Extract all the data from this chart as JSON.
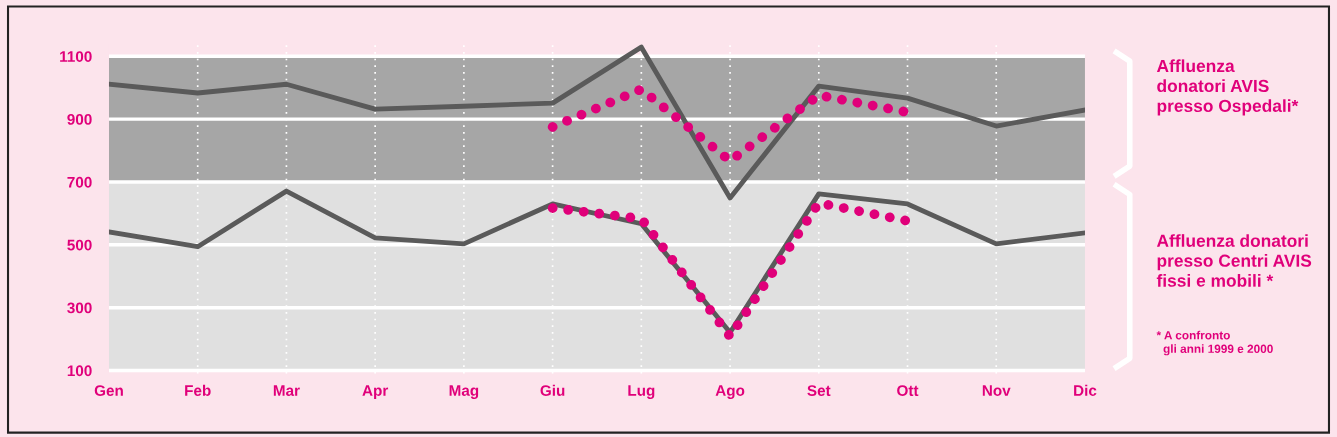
{
  "chart_data": {
    "type": "line",
    "categories": [
      "Gen",
      "Feb",
      "Mar",
      "Apr",
      "Mag",
      "Giu",
      "Lug",
      "Ago",
      "Set",
      "Ott",
      "Nov",
      "Dic"
    ],
    "series": [
      {
        "color": "#5a5a5a",
        "line_style": "solid",
        "values": [
          1011,
          983,
          1011,
          932,
          941,
          951,
          1129,
          649,
          1005,
          967,
          878,
          929
        ]
      },
      {
        "color": "#5a5a5a",
        "line_style": "solid",
        "values": [
          541,
          494,
          671,
          522,
          503,
          630,
          567,
          221,
          662,
          630,
          503,
          538
        ]
      },
      {
        "color": "#e0007a",
        "line_style": "dotted",
        "values": [
          null,
          null,
          null,
          null,
          null,
          875,
          995,
          767,
          976,
          922,
          null,
          null
        ]
      },
      {
        "color": "#e0007a",
        "line_style": "dotted",
        "values": [
          null,
          null,
          null,
          null,
          null,
          617,
          583,
          208,
          633,
          576,
          null,
          null
        ]
      }
    ],
    "ylim": [
      90,
      1140
    ],
    "yticks": [
      100,
      300,
      500,
      700,
      900,
      1100
    ],
    "bands": [
      {
        "axis": "y",
        "from": 700,
        "to": 1100,
        "color": "#a6a6a6"
      },
      {
        "axis": "y",
        "from": 100,
        "to": 700,
        "color": "#e0e0e0"
      }
    ],
    "grid": true,
    "annotations": [
      "Affluenza\ndonatori AVIS\npresso Ospedali*",
      "Affluenza donatori\npresso Centri AVIS\nfissi e mobili *",
      "* A confronto\n  gli anni 1999 e 2000"
    ]
  }
}
